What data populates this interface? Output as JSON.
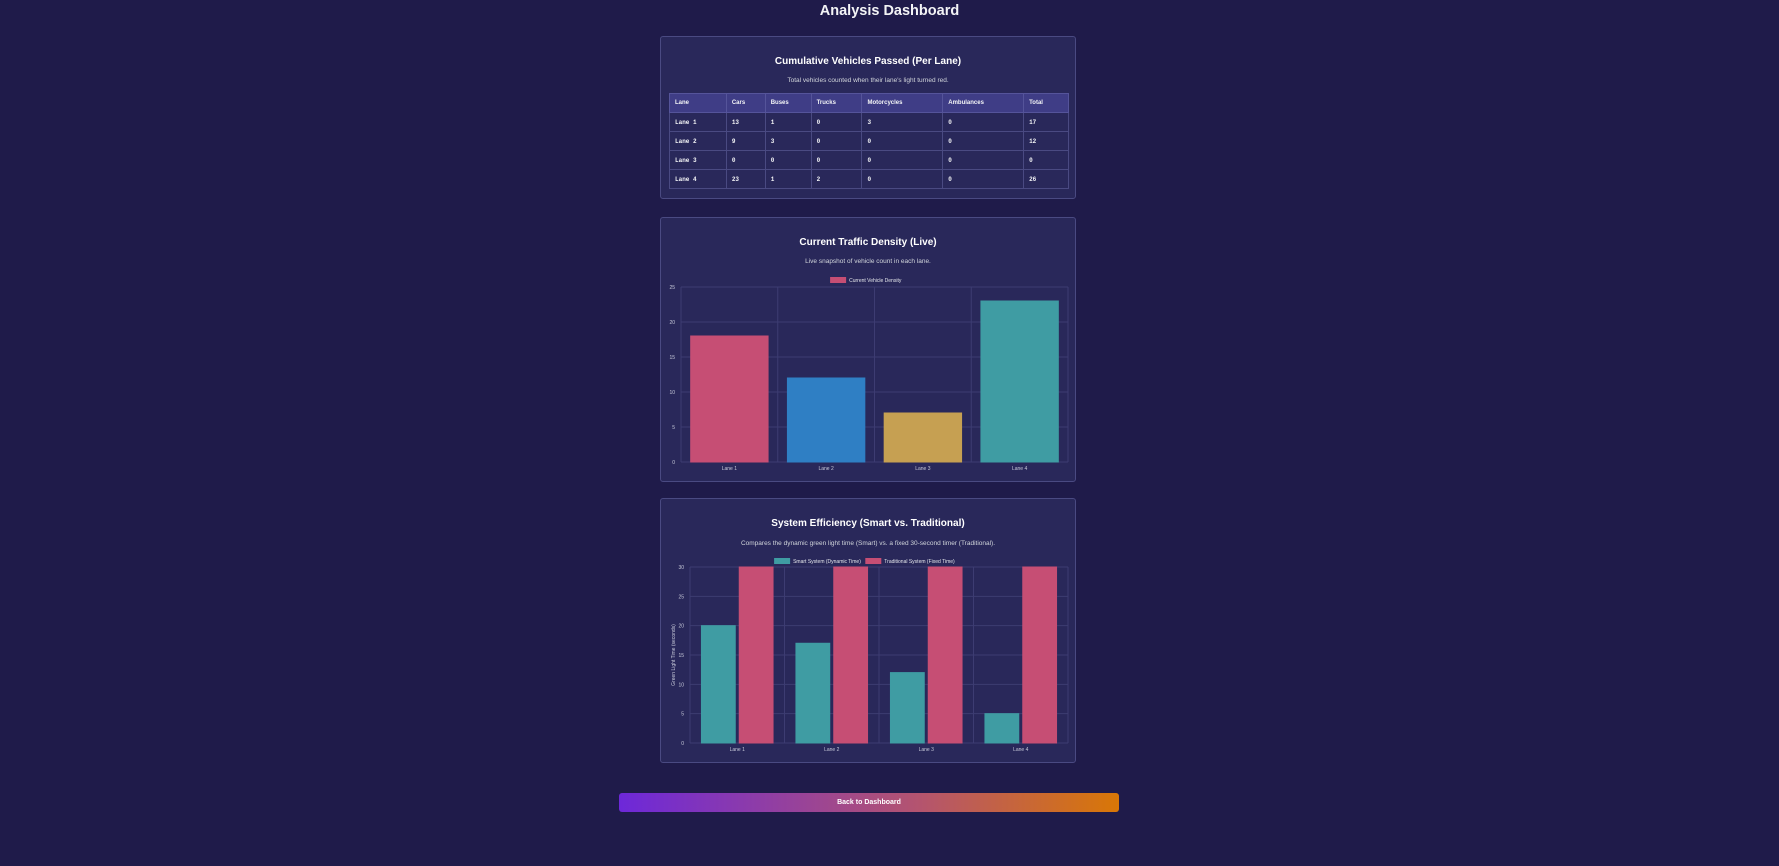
{
  "page": {
    "title": "Analysis Dashboard"
  },
  "cumulative": {
    "title": "Cumulative Vehicles Passed (Per Lane)",
    "subtitle": "Total vehicles counted when their lane's light turned red.",
    "columns": [
      "Lane",
      "Cars",
      "Buses",
      "Trucks",
      "Motorcycles",
      "Ambulances",
      "Total"
    ],
    "rows": [
      [
        "Lane 1",
        "13",
        "1",
        "0",
        "3",
        "0",
        "17"
      ],
      [
        "Lane 2",
        "9",
        "3",
        "0",
        "0",
        "0",
        "12"
      ],
      [
        "Lane 3",
        "0",
        "0",
        "0",
        "0",
        "0",
        "0"
      ],
      [
        "Lane 4",
        "23",
        "1",
        "2",
        "0",
        "0",
        "26"
      ]
    ]
  },
  "density": {
    "title": "Current Traffic Density (Live)",
    "subtitle": "Live snapshot of vehicle count in each lane.",
    "legend_color": "#c64e74",
    "chart_data": {
      "type": "bar",
      "categories": [
        "Lane 1",
        "Lane 2",
        "Lane 3",
        "Lane 4"
      ],
      "series": [
        {
          "name": "Current Vehicle Density",
          "values": [
            18,
            12,
            7,
            23
          ]
        }
      ],
      "colors": [
        "#c64e74",
        "#2f7fc4",
        "#c6a052",
        "#3f9ca3"
      ],
      "ylim": [
        0,
        25
      ],
      "yticks": [
        0,
        5,
        10,
        15,
        20,
        25
      ],
      "grid": true,
      "legend": "top"
    }
  },
  "efficiency": {
    "title": "System Efficiency (Smart vs. Traditional)",
    "subtitle": "Compares the dynamic green light time (Smart) vs. a fixed 30-second timer (Traditional).",
    "chart_data": {
      "type": "bar",
      "categories": [
        "Lane 1",
        "Lane 2",
        "Lane 3",
        "Lane 4"
      ],
      "series": [
        {
          "name": "Smart System (Dynamic Time)",
          "values": [
            20,
            17,
            12,
            5
          ],
          "color": "#3f9ca3"
        },
        {
          "name": "Traditional System (Fixed Time)",
          "values": [
            30,
            30,
            30,
            30
          ],
          "color": "#c64e74"
        }
      ],
      "ylabel": "Green Light Time (seconds)",
      "ylim": [
        0,
        30
      ],
      "yticks": [
        0,
        5,
        10,
        15,
        20,
        25,
        30
      ],
      "grid": true,
      "legend": "top"
    }
  },
  "footer": {
    "back_label": "Back to Dashboard"
  }
}
